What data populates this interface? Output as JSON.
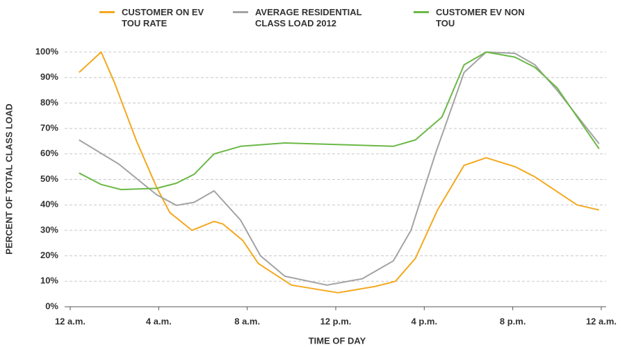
{
  "chart_data": {
    "type": "line",
    "xlabel": "TIME OF DAY",
    "ylabel": "PERCENT OF TOTAL CLASS LOAD",
    "xlim": [
      0,
      24
    ],
    "xticks": [
      {
        "value": 0,
        "label": "12 a.m."
      },
      {
        "value": 4,
        "label": "4 a.m."
      },
      {
        "value": 8,
        "label": "8 a.m."
      },
      {
        "value": 12,
        "label": "12 p.m."
      },
      {
        "value": 16,
        "label": "4 p.m."
      },
      {
        "value": 20,
        "label": "8 p.m."
      },
      {
        "value": 24,
        "label": "12 a.m."
      }
    ],
    "ylim": [
      0,
      100
    ],
    "yticks": [
      {
        "value": 0,
        "label": "0%"
      },
      {
        "value": 10,
        "label": "10%"
      },
      {
        "value": 20,
        "label": "20%"
      },
      {
        "value": 30,
        "label": "30%"
      },
      {
        "value": 40,
        "label": "40%"
      },
      {
        "value": 50,
        "label": "50%"
      },
      {
        "value": 60,
        "label": "60%"
      },
      {
        "value": 70,
        "label": "70%"
      },
      {
        "value": 80,
        "label": "80%"
      },
      {
        "value": 90,
        "label": "90%"
      },
      {
        "value": 100,
        "label": "100%"
      }
    ],
    "grid": true,
    "series": [
      {
        "name": "CUSTOMER ON EV TOU RATE",
        "color": "#f4a81d",
        "x": [
          0.4,
          1.4,
          2.0,
          3.0,
          3.9,
          4.5,
          5.5,
          6.5,
          6.9,
          7.8,
          8.5,
          10.0,
          12.1,
          13.8,
          14.7,
          15.6,
          16.6,
          17.8,
          18.8,
          20.1,
          21.0,
          22.9,
          23.9
        ],
        "values": [
          92,
          100,
          88,
          65,
          47,
          37,
          30,
          33.5,
          32.5,
          26,
          17,
          8.5,
          5.5,
          8,
          10,
          19,
          38,
          55.5,
          58.5,
          55,
          51,
          40,
          38
        ]
      },
      {
        "name": "AVERAGE RESIDENTIAL CLASS LOAD 2012",
        "color": "#a3a3a3",
        "x": [
          0.4,
          2.2,
          3.9,
          4.8,
          5.6,
          6.5,
          7.7,
          8.6,
          9.7,
          11.6,
          13.2,
          14.6,
          15.4,
          16.5,
          17.8,
          18.8,
          20.1,
          21.0,
          22.0,
          23.9
        ],
        "values": [
          65.5,
          56,
          44,
          39.8,
          41,
          45.5,
          34,
          20,
          12,
          8.5,
          11,
          18,
          30,
          60,
          92,
          100,
          99.5,
          95,
          85,
          64
        ]
      },
      {
        "name": "CUSTOMER EV NON TOU",
        "color": "#6ab845",
        "x": [
          0.4,
          1.4,
          2.3,
          3.9,
          4.8,
          5.6,
          6.5,
          7.7,
          9.7,
          14.6,
          15.6,
          16.8,
          17.8,
          18.8,
          20.1,
          21.0,
          22.0,
          23.9
        ],
        "values": [
          52.5,
          48,
          46,
          46.5,
          48.5,
          52,
          60,
          63,
          64.3,
          63,
          65.5,
          74.5,
          95,
          100,
          98,
          94,
          86,
          62
        ]
      }
    ]
  }
}
